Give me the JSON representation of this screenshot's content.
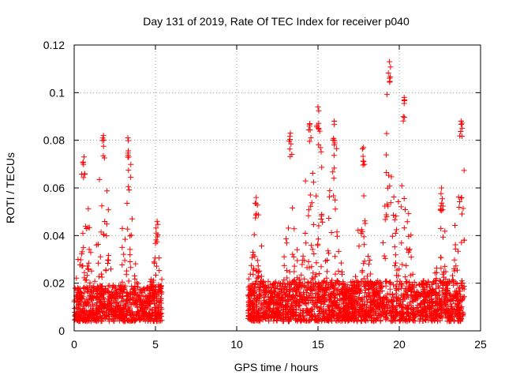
{
  "chart_data": {
    "type": "scatter",
    "title": "Day 131 of 2019, Rate Of TEC Index for receiver p040",
    "xlabel": "GPS time / hours",
    "ylabel": "ROTI / TECUs",
    "xlim": [
      0,
      25
    ],
    "ylim": [
      0,
      0.12
    ],
    "x_ticks": [
      0,
      5,
      10,
      15,
      20,
      25
    ],
    "x_tick_labels": [
      "0",
      "5",
      "10",
      "15",
      "20",
      "25"
    ],
    "y_ticks": [
      0,
      0.02,
      0.04,
      0.06,
      0.08,
      0.1,
      0.12
    ],
    "y_tick_labels": [
      "0",
      "0.02",
      "0.04",
      "0.06",
      "0.08",
      "0.1",
      "0.12"
    ],
    "grid": true,
    "marker": "+",
    "color": "#ff0000",
    "series": [
      {
        "name": "ROTI",
        "segments": [
          {
            "x_start": 0.0,
            "x_end": 5.4,
            "baseline": 0.009,
            "spread": 0.006
          },
          {
            "x_start": 10.7,
            "x_end": 24.0,
            "baseline": 0.01,
            "spread": 0.007
          }
        ],
        "peaks": [
          {
            "x": 0.6,
            "y": 0.073
          },
          {
            "x": 1.8,
            "y": 0.082
          },
          {
            "x": 3.3,
            "y": 0.081
          },
          {
            "x": 5.1,
            "y": 0.046
          },
          {
            "x": 11.2,
            "y": 0.056
          },
          {
            "x": 13.3,
            "y": 0.083
          },
          {
            "x": 14.5,
            "y": 0.087
          },
          {
            "x": 15.0,
            "y": 0.094
          },
          {
            "x": 16.0,
            "y": 0.088
          },
          {
            "x": 17.8,
            "y": 0.077
          },
          {
            "x": 19.4,
            "y": 0.113
          },
          {
            "x": 20.3,
            "y": 0.098
          },
          {
            "x": 22.6,
            "y": 0.06
          },
          {
            "x": 23.8,
            "y": 0.088
          }
        ],
        "n_points": 3200
      }
    ]
  }
}
